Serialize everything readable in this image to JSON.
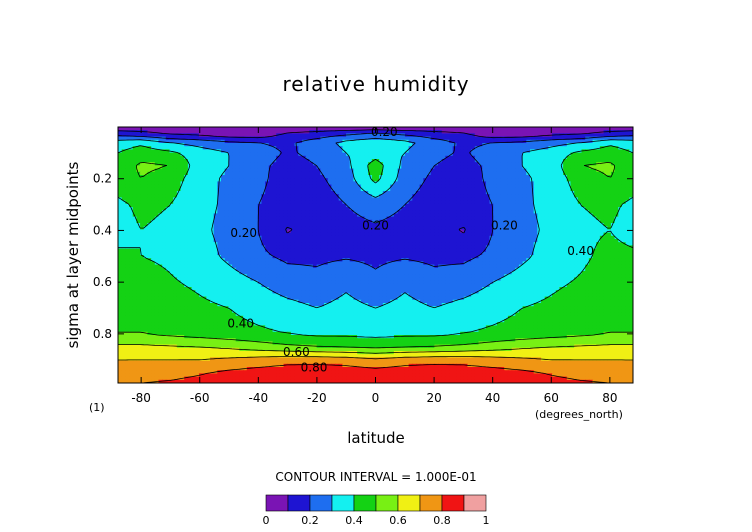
{
  "chart_data": {
    "type": "heatmap",
    "title": "relative humidity",
    "xlabel": "latitude",
    "ylabel": "sigma at layer midpoints",
    "x_units": "(degrees_north)",
    "panel_tag": "(1)",
    "xlim": [
      -87.9,
      87.9
    ],
    "ylim": [
      0.99,
      0.0
    ],
    "x_ticks": [
      -80,
      -60,
      -40,
      -20,
      0,
      20,
      40,
      60,
      80
    ],
    "x_tick_labels": [
      "-80",
      "-60",
      "-40",
      "-20",
      "0",
      "20",
      "40",
      "60",
      "80"
    ],
    "y_ticks": [
      0.2,
      0.4,
      0.6,
      0.8
    ],
    "y_tick_labels": [
      "0.2",
      "0.4",
      "0.6",
      "0.8"
    ],
    "contour_interval_text": "CONTOUR INTERVAL = 1.000E-01",
    "levels": [
      0,
      0.1,
      0.2,
      0.3,
      0.4,
      0.5,
      0.6,
      0.7,
      0.8,
      0.9,
      1.0
    ],
    "colorbar_tick_labels": [
      "0",
      "0.2",
      "0.4",
      "0.6",
      "0.8",
      "1"
    ],
    "colors": [
      "#7a14b4",
      "#1e14d2",
      "#1e6ef0",
      "#14f0f0",
      "#14d214",
      "#78f014",
      "#f0f014",
      "#f09614",
      "#f01414",
      "#f0a0a0"
    ],
    "lat": [
      -87.9,
      -80,
      -70,
      -60,
      -50,
      -40,
      -30,
      -20,
      -10,
      0,
      10,
      20,
      30,
      40,
      50,
      60,
      70,
      80,
      87.9
    ],
    "sigma": [
      0.005,
      0.03,
      0.06,
      0.1,
      0.15,
      0.2,
      0.3,
      0.4,
      0.5,
      0.6,
      0.7,
      0.8,
      0.85,
      0.9,
      0.95,
      0.99
    ],
    "rh": [
      [
        0.05,
        0.05,
        0.05,
        0.05,
        0.05,
        0.05,
        0.05,
        0.05,
        0.05,
        0.05,
        0.05,
        0.05,
        0.05,
        0.05,
        0.05,
        0.05,
        0.05,
        0.05,
        0.05
      ],
      [
        0.18,
        0.15,
        0.1,
        0.08,
        0.05,
        0.04,
        0.12,
        0.15,
        0.2,
        0.25,
        0.2,
        0.15,
        0.12,
        0.04,
        0.05,
        0.08,
        0.1,
        0.15,
        0.18
      ],
      [
        0.35,
        0.38,
        0.3,
        0.26,
        0.22,
        0.2,
        0.18,
        0.25,
        0.33,
        0.36,
        0.33,
        0.25,
        0.18,
        0.2,
        0.22,
        0.26,
        0.3,
        0.38,
        0.35
      ],
      [
        0.4,
        0.45,
        0.42,
        0.35,
        0.3,
        0.24,
        0.19,
        0.22,
        0.3,
        0.35,
        0.3,
        0.22,
        0.19,
        0.24,
        0.3,
        0.35,
        0.42,
        0.45,
        0.4
      ],
      [
        0.43,
        0.52,
        0.5,
        0.35,
        0.3,
        0.22,
        0.17,
        0.2,
        0.27,
        0.45,
        0.27,
        0.2,
        0.17,
        0.22,
        0.3,
        0.35,
        0.5,
        0.52,
        0.43
      ],
      [
        0.45,
        0.5,
        0.45,
        0.34,
        0.28,
        0.22,
        0.16,
        0.18,
        0.25,
        0.43,
        0.25,
        0.18,
        0.16,
        0.22,
        0.28,
        0.34,
        0.45,
        0.5,
        0.45
      ],
      [
        0.38,
        0.42,
        0.4,
        0.33,
        0.28,
        0.2,
        0.16,
        0.15,
        0.2,
        0.25,
        0.2,
        0.15,
        0.16,
        0.2,
        0.28,
        0.33,
        0.4,
        0.42,
        0.38
      ],
      [
        0.36,
        0.4,
        0.38,
        0.32,
        0.27,
        0.2,
        0.09,
        0.14,
        0.16,
        0.18,
        0.16,
        0.14,
        0.09,
        0.2,
        0.27,
        0.32,
        0.38,
        0.4,
        0.36
      ],
      [
        0.42,
        0.4,
        0.38,
        0.34,
        0.28,
        0.22,
        0.18,
        0.18,
        0.19,
        0.18,
        0.19,
        0.18,
        0.18,
        0.22,
        0.28,
        0.34,
        0.38,
        0.43,
        0.42
      ],
      [
        0.43,
        0.45,
        0.41,
        0.38,
        0.34,
        0.3,
        0.25,
        0.23,
        0.28,
        0.22,
        0.28,
        0.23,
        0.25,
        0.3,
        0.34,
        0.38,
        0.41,
        0.45,
        0.43
      ],
      [
        0.48,
        0.48,
        0.45,
        0.42,
        0.4,
        0.36,
        0.33,
        0.3,
        0.33,
        0.3,
        0.33,
        0.3,
        0.33,
        0.36,
        0.4,
        0.42,
        0.45,
        0.48,
        0.48
      ],
      [
        0.5,
        0.5,
        0.48,
        0.46,
        0.44,
        0.42,
        0.4,
        0.38,
        0.38,
        0.37,
        0.38,
        0.38,
        0.4,
        0.42,
        0.44,
        0.46,
        0.48,
        0.5,
        0.5
      ],
      [
        0.62,
        0.62,
        0.61,
        0.6,
        0.58,
        0.55,
        0.52,
        0.5,
        0.49,
        0.48,
        0.49,
        0.5,
        0.52,
        0.55,
        0.58,
        0.6,
        0.61,
        0.62,
        0.62
      ],
      [
        0.7,
        0.7,
        0.7,
        0.7,
        0.72,
        0.74,
        0.76,
        0.76,
        0.75,
        0.72,
        0.75,
        0.76,
        0.76,
        0.74,
        0.72,
        0.7,
        0.7,
        0.7,
        0.7
      ],
      [
        0.75,
        0.76,
        0.77,
        0.79,
        0.82,
        0.84,
        0.86,
        0.87,
        0.86,
        0.84,
        0.86,
        0.87,
        0.86,
        0.84,
        0.82,
        0.79,
        0.77,
        0.76,
        0.75
      ],
      [
        0.79,
        0.8,
        0.81,
        0.83,
        0.86,
        0.88,
        0.89,
        0.89,
        0.89,
        0.88,
        0.89,
        0.89,
        0.89,
        0.88,
        0.86,
        0.83,
        0.81,
        0.8,
        0.79
      ]
    ],
    "contour_labels": [
      {
        "text": "0.20",
        "lat": 3,
        "sigma": 0.02
      },
      {
        "text": "0.20",
        "lat": 0,
        "sigma": 0.38
      },
      {
        "text": "0.20",
        "lat": -45,
        "sigma": 0.41
      },
      {
        "text": "0.20",
        "lat": 44,
        "sigma": 0.38
      },
      {
        "text": "0.40",
        "lat": 70,
        "sigma": 0.48
      },
      {
        "text": "0.40",
        "lat": -46,
        "sigma": 0.76
      },
      {
        "text": "0.60",
        "lat": -27,
        "sigma": 0.87
      },
      {
        "text": "0.80",
        "lat": -21,
        "sigma": 0.93
      }
    ]
  }
}
